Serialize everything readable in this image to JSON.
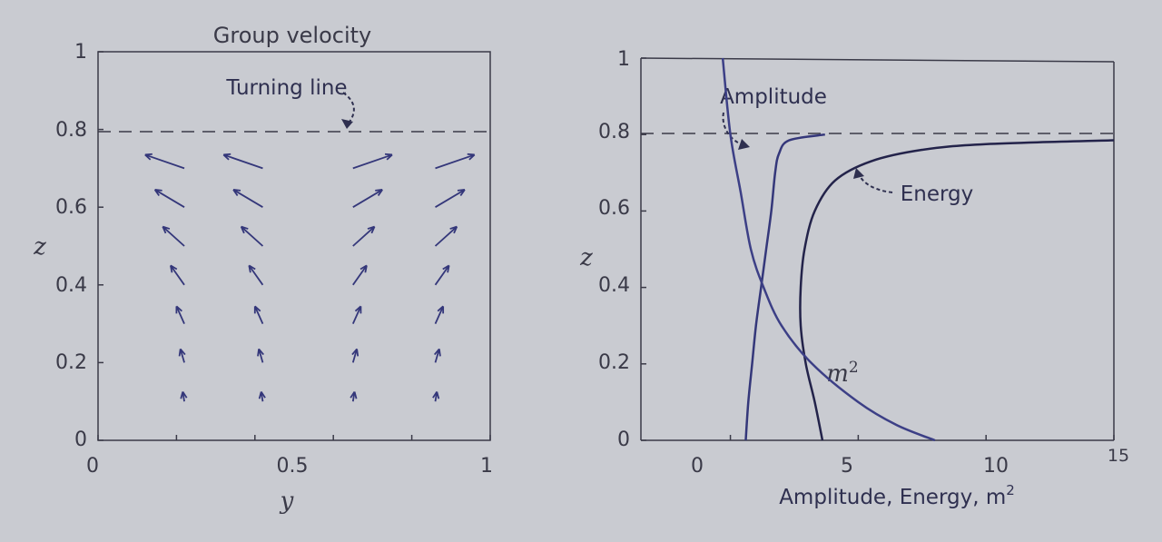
{
  "colors": {
    "background": "#c9cbd1",
    "axes": "#3a3a48",
    "curve": "#34377a",
    "curve_dark": "#23234a"
  },
  "chart_data": [
    {
      "type": "quiver",
      "title": "Group velocity",
      "xlabel": "y",
      "ylabel": "z",
      "xlim": [
        0,
        1
      ],
      "ylim": [
        0,
        1
      ],
      "xticks": [
        "0",
        "0.5",
        "1"
      ],
      "yticks": [
        "0",
        "0.2",
        "0.4",
        "0.6",
        "0.8",
        "1"
      ],
      "turning_line": {
        "z": 0.8,
        "label": "Turning line"
      },
      "grid": false,
      "columns": [
        0.22,
        0.42,
        0.65,
        0.86
      ],
      "z_levels": [
        0.1,
        0.2,
        0.3,
        0.4,
        0.5,
        0.6,
        0.7
      ],
      "vectors": [
        {
          "y": 0.22,
          "z": 0.1,
          "u": -0.004,
          "v": 0.025
        },
        {
          "y": 0.22,
          "z": 0.2,
          "u": -0.01,
          "v": 0.035
        },
        {
          "y": 0.22,
          "z": 0.3,
          "u": -0.02,
          "v": 0.045
        },
        {
          "y": 0.22,
          "z": 0.4,
          "u": -0.035,
          "v": 0.05
        },
        {
          "y": 0.22,
          "z": 0.5,
          "u": -0.055,
          "v": 0.05
        },
        {
          "y": 0.22,
          "z": 0.6,
          "u": -0.075,
          "v": 0.045
        },
        {
          "y": 0.22,
          "z": 0.7,
          "u": -0.1,
          "v": 0.035
        },
        {
          "y": 0.42,
          "z": 0.1,
          "u": -0.004,
          "v": 0.025
        },
        {
          "y": 0.42,
          "z": 0.2,
          "u": -0.01,
          "v": 0.035
        },
        {
          "y": 0.42,
          "z": 0.3,
          "u": -0.02,
          "v": 0.045
        },
        {
          "y": 0.42,
          "z": 0.4,
          "u": -0.035,
          "v": 0.05
        },
        {
          "y": 0.42,
          "z": 0.5,
          "u": -0.055,
          "v": 0.05
        },
        {
          "y": 0.42,
          "z": 0.6,
          "u": -0.075,
          "v": 0.045
        },
        {
          "y": 0.42,
          "z": 0.7,
          "u": -0.1,
          "v": 0.035
        },
        {
          "y": 0.65,
          "z": 0.1,
          "u": 0.004,
          "v": 0.025
        },
        {
          "y": 0.65,
          "z": 0.2,
          "u": 0.01,
          "v": 0.035
        },
        {
          "y": 0.65,
          "z": 0.3,
          "u": 0.02,
          "v": 0.045
        },
        {
          "y": 0.65,
          "z": 0.4,
          "u": 0.035,
          "v": 0.05
        },
        {
          "y": 0.65,
          "z": 0.5,
          "u": 0.055,
          "v": 0.05
        },
        {
          "y": 0.65,
          "z": 0.6,
          "u": 0.075,
          "v": 0.045
        },
        {
          "y": 0.65,
          "z": 0.7,
          "u": 0.1,
          "v": 0.035
        },
        {
          "y": 0.86,
          "z": 0.1,
          "u": 0.004,
          "v": 0.025
        },
        {
          "y": 0.86,
          "z": 0.2,
          "u": 0.01,
          "v": 0.035
        },
        {
          "y": 0.86,
          "z": 0.3,
          "u": 0.02,
          "v": 0.045
        },
        {
          "y": 0.86,
          "z": 0.4,
          "u": 0.035,
          "v": 0.05
        },
        {
          "y": 0.86,
          "z": 0.5,
          "u": 0.055,
          "v": 0.05
        },
        {
          "y": 0.86,
          "z": 0.6,
          "u": 0.075,
          "v": 0.045
        },
        {
          "y": 0.86,
          "z": 0.7,
          "u": 0.1,
          "v": 0.035
        }
      ]
    },
    {
      "type": "line",
      "xlabel": "Amplitude, Energy, m",
      "xlabel_sup": "2",
      "ylabel": "z",
      "xlim": [
        -3.5,
        15
      ],
      "ylim": [
        0,
        1
      ],
      "xticks": [
        "0",
        "5",
        "10",
        "15"
      ],
      "yticks": [
        "0",
        "0.2",
        "0.4",
        "0.6",
        "0.8",
        "1"
      ],
      "turning_line": {
        "z": 0.8
      },
      "grid": false,
      "series": [
        {
          "name": "Amplitude",
          "label": "Amplitude",
          "points": [
            [
              0.6,
              0
            ],
            [
              0.7,
              0.1
            ],
            [
              0.85,
              0.2
            ],
            [
              1.0,
              0.3
            ],
            [
              1.2,
              0.4
            ],
            [
              1.4,
              0.5
            ],
            [
              1.6,
              0.6
            ],
            [
              1.75,
              0.7
            ],
            [
              1.9,
              0.75
            ],
            [
              2.3,
              0.785
            ],
            [
              3.7,
              0.8
            ]
          ]
        },
        {
          "name": "Energy",
          "label": "Energy",
          "points": [
            [
              3.6,
              0
            ],
            [
              3.3,
              0.1
            ],
            [
              2.95,
              0.2
            ],
            [
              2.75,
              0.3
            ],
            [
              2.75,
              0.4
            ],
            [
              2.9,
              0.5
            ],
            [
              3.3,
              0.6
            ],
            [
              4.1,
              0.68
            ],
            [
              5.5,
              0.73
            ],
            [
              7.5,
              0.76
            ],
            [
              10,
              0.775
            ],
            [
              15,
              0.785
            ]
          ]
        },
        {
          "name": "m",
          "label": "m",
          "label_sup": "2",
          "points": [
            [
              -0.3,
              1.0
            ],
            [
              0.0,
              0.8
            ],
            [
              0.4,
              0.65
            ],
            [
              0.8,
              0.5
            ],
            [
              1.3,
              0.4
            ],
            [
              2.0,
              0.3
            ],
            [
              3.2,
              0.2
            ],
            [
              5.0,
              0.1
            ],
            [
              6.5,
              0.04
            ],
            [
              8.0,
              0
            ]
          ]
        }
      ]
    }
  ]
}
